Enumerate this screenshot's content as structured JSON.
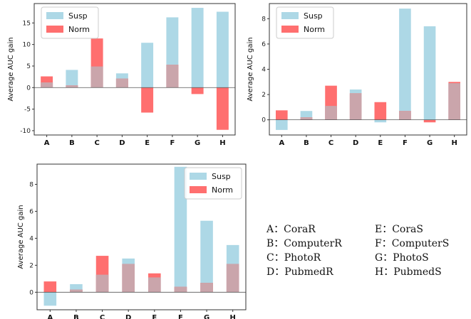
{
  "colors": {
    "susp": "#add8e6",
    "norm": "#ff6f6f",
    "overlap": "#caa5ab",
    "axis": "#333333",
    "baseline": "#555555"
  },
  "chart_data": [
    {
      "type": "bar",
      "categories": [
        "A",
        "B",
        "C",
        "D",
        "E",
        "F",
        "G",
        "H"
      ],
      "series": [
        {
          "name": "Susp",
          "values": [
            1.2,
            4.1,
            4.9,
            3.3,
            10.4,
            16.3,
            18.5,
            17.6
          ]
        },
        {
          "name": "Norm",
          "values": [
            2.6,
            0.5,
            11.4,
            2.1,
            -5.8,
            5.3,
            -1.5,
            -9.8
          ]
        }
      ],
      "ylabel": "Average AUC gain",
      "ylim": [
        -11,
        19.5
      ],
      "yticks": [
        -10,
        -5,
        0,
        5,
        10,
        15
      ],
      "legend": "top-left",
      "grid": false
    },
    {
      "type": "bar",
      "categories": [
        "A",
        "B",
        "C",
        "D",
        "E",
        "F",
        "G",
        "H"
      ],
      "series": [
        {
          "name": "Susp",
          "values": [
            -0.8,
            0.7,
            1.1,
            2.4,
            -0.2,
            8.8,
            7.4,
            2.9
          ]
        },
        {
          "name": "Norm",
          "values": [
            0.75,
            0.2,
            2.7,
            2.1,
            1.4,
            0.7,
            -0.2,
            3.0
          ]
        }
      ],
      "ylabel": "Average AUC gain",
      "ylim": [
        -1.2,
        9.2
      ],
      "yticks": [
        0,
        2,
        4,
        6,
        8
      ],
      "legend": "top-left",
      "grid": false
    },
    {
      "type": "bar",
      "categories": [
        "A",
        "B",
        "C",
        "D",
        "E",
        "F",
        "G",
        "H"
      ],
      "series": [
        {
          "name": "Susp",
          "values": [
            -1.0,
            0.6,
            1.3,
            2.5,
            1.1,
            9.3,
            5.3,
            3.5
          ]
        },
        {
          "name": "Norm",
          "values": [
            0.8,
            0.2,
            2.7,
            2.1,
            1.4,
            0.4,
            0.7,
            2.1
          ]
        }
      ],
      "ylabel": "Average AUC gain",
      "ylim": [
        -1.3,
        9.5
      ],
      "yticks": [
        0,
        2,
        4,
        6,
        8
      ],
      "legend": "top-right",
      "grid": false
    }
  ],
  "key": [
    {
      "text": "A：CoraR"
    },
    {
      "text": "B：ComputerR"
    },
    {
      "text": "C：PhotoR"
    },
    {
      "text": "D：PubmedR"
    },
    {
      "text": "E：CoraS"
    },
    {
      "text": "F：ComputerS"
    },
    {
      "text": "G：PhotoS"
    },
    {
      "text": "H：PubmedS"
    }
  ]
}
